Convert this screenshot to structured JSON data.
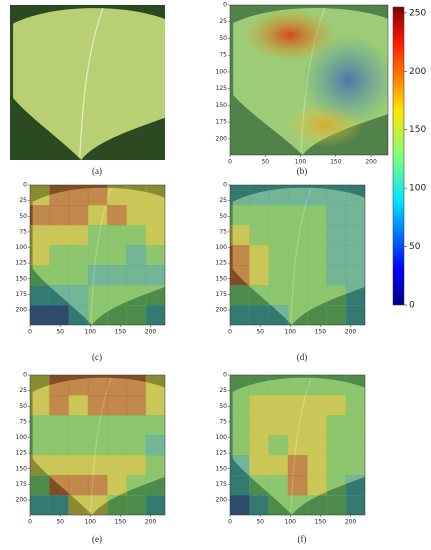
{
  "panels": [
    {
      "label": "(a)"
    },
    {
      "label": "(b)"
    },
    {
      "label": "(c)"
    },
    {
      "label": "(d)"
    },
    {
      "label": "(e)"
    },
    {
      "label": "(f)"
    }
  ],
  "axes": {
    "xlim": [
      0,
      224
    ],
    "ylim": [
      0,
      224
    ],
    "xticks": [
      0,
      50,
      100,
      150,
      200
    ],
    "yticks": [
      0,
      25,
      50,
      75,
      100,
      125,
      150,
      175,
      200
    ]
  },
  "colorbar": {
    "range": [
      0,
      255
    ],
    "ticks": [
      0,
      50,
      100,
      150,
      200,
      250
    ]
  }
}
